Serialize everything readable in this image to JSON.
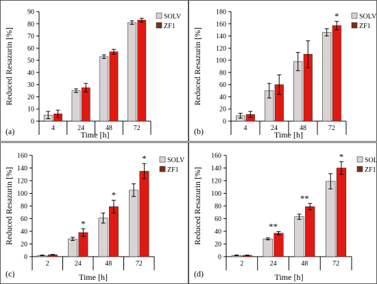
{
  "chart_data": [
    {
      "type": "bar",
      "panel_label": "(a)",
      "categories": [
        "4",
        "24",
        "48",
        "72"
      ],
      "series": [
        {
          "name": "SOLV",
          "values": [
            5,
            25,
            53,
            81
          ],
          "errors": [
            3,
            1.5,
            1.5,
            1.5
          ]
        },
        {
          "name": "ZF1",
          "values": [
            6,
            27.5,
            57,
            83
          ],
          "errors": [
            3,
            3.5,
            2,
            1.5
          ]
        }
      ],
      "xlabel": "Time [h]",
      "ylabel": "Reduced Resazurin [%]",
      "ylim": [
        0,
        90
      ],
      "yticks": [
        0,
        10,
        20,
        30,
        40,
        50,
        60,
        70,
        80,
        90
      ],
      "significance": [
        "",
        "",
        "",
        ""
      ],
      "legend_position": "top-right",
      "grid": false
    },
    {
      "type": "bar",
      "panel_label": "(b)",
      "categories": [
        "4",
        "24",
        "48",
        "72"
      ],
      "series": [
        {
          "name": "SOLV",
          "values": [
            9,
            50,
            98,
            146
          ],
          "errors": [
            4,
            12,
            15,
            6
          ]
        },
        {
          "name": "ZF1",
          "values": [
            11,
            60,
            110,
            157
          ],
          "errors": [
            5,
            16,
            22,
            7
          ]
        }
      ],
      "xlabel": "Time [h]",
      "ylabel": "Reduced Resazurin [%]",
      "ylim": [
        0,
        180
      ],
      "yticks": [
        0,
        20,
        40,
        60,
        80,
        100,
        120,
        140,
        160,
        180
      ],
      "significance": [
        "",
        "",
        "",
        "*"
      ],
      "legend_position": "top-right",
      "grid": false
    },
    {
      "type": "bar",
      "panel_label": "(c)",
      "categories": [
        "2",
        "24",
        "48",
        "72"
      ],
      "series": [
        {
          "name": "SOLV",
          "values": [
            2,
            28,
            61,
            105
          ],
          "errors": [
            0.5,
            2.5,
            8,
            10
          ]
        },
        {
          "name": "ZF1",
          "values": [
            3,
            38,
            79,
            135
          ],
          "errors": [
            0.5,
            6,
            10,
            12
          ]
        }
      ],
      "xlabel": "Time [h]",
      "ylabel": "Reduced Resazurin [%]",
      "ylim": [
        0,
        160
      ],
      "yticks": [
        0,
        20,
        40,
        60,
        80,
        100,
        120,
        140,
        160
      ],
      "significance": [
        "",
        "*",
        "*",
        "*"
      ],
      "legend_position": "top-right",
      "grid": false
    },
    {
      "type": "bar",
      "panel_label": "(d)",
      "categories": [
        "2",
        "24",
        "48",
        "72"
      ],
      "series": [
        {
          "name": "SOLV",
          "values": [
            2,
            28,
            63,
            119
          ],
          "errors": [
            0.5,
            1.5,
            4,
            12
          ]
        },
        {
          "name": "ZF1",
          "values": [
            2,
            37,
            79,
            140
          ],
          "errors": [
            0.5,
            2.5,
            5,
            10
          ]
        }
      ],
      "xlabel": "Time [h]",
      "ylabel": "Reduced Resazurin [%]",
      "ylim": [
        0,
        160
      ],
      "yticks": [
        0,
        20,
        40,
        60,
        80,
        100,
        120,
        140,
        160
      ],
      "significance": [
        "",
        "**",
        "**",
        "*"
      ],
      "legend_position": "top-right",
      "grid": false
    }
  ],
  "colors": {
    "solv": "#d9d3d3",
    "zf1": "#e01a12",
    "zf1_legend": "#7a3012",
    "axis": "#000000",
    "border": "#555555",
    "significance": "#c0208a"
  }
}
